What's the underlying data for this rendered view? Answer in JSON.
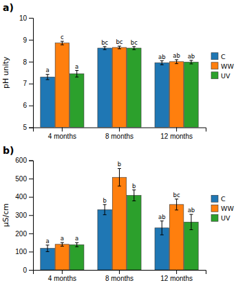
{
  "chart_data": [
    {
      "type": "bar",
      "title": "a)",
      "y_label": "pH unity",
      "categories": [
        "4 months",
        "8 months",
        "12 months"
      ],
      "series": [
        {
          "name": "C",
          "values": [
            7.3,
            8.62,
            7.95
          ],
          "errors": [
            0.12,
            0.07,
            0.09
          ],
          "annotations": [
            "a",
            "bc",
            "ab"
          ]
        },
        {
          "name": "WW",
          "values": [
            8.85,
            8.65,
            8.0
          ],
          "errors": [
            0.08,
            0.06,
            0.09
          ],
          "annotations": [
            "c",
            "bc",
            "ab"
          ]
        },
        {
          "name": "UV",
          "values": [
            7.45,
            8.62,
            7.98
          ],
          "errors": [
            0.15,
            0.07,
            0.08
          ],
          "annotations": [
            "a",
            "bc",
            "ab"
          ]
        }
      ],
      "ylim": [
        5,
        10
      ],
      "yticks": [
        5,
        6,
        7,
        8,
        9,
        10
      ],
      "grid": false,
      "legend": "right"
    },
    {
      "type": "bar",
      "title": "b)",
      "y_label": "μS/cm",
      "categories": [
        "4 months",
        "8 months",
        "12 months"
      ],
      "series": [
        {
          "name": "C",
          "values": [
            118,
            330,
            230
          ],
          "errors": [
            18,
            28,
            38
          ],
          "annotations": [
            "a",
            "b",
            "ab"
          ]
        },
        {
          "name": "WW",
          "values": [
            140,
            507,
            358
          ],
          "errors": [
            10,
            48,
            30
          ],
          "annotations": [
            "a",
            "b",
            "bc"
          ]
        },
        {
          "name": "UV",
          "values": [
            138,
            408,
            262
          ],
          "errors": [
            11,
            30,
            42
          ],
          "annotations": [
            "a",
            "b",
            "ab"
          ]
        }
      ],
      "ylim": [
        0,
        600
      ],
      "yticks": [
        0,
        100,
        200,
        300,
        400,
        500,
        600
      ],
      "grid": false,
      "legend": "right"
    }
  ]
}
